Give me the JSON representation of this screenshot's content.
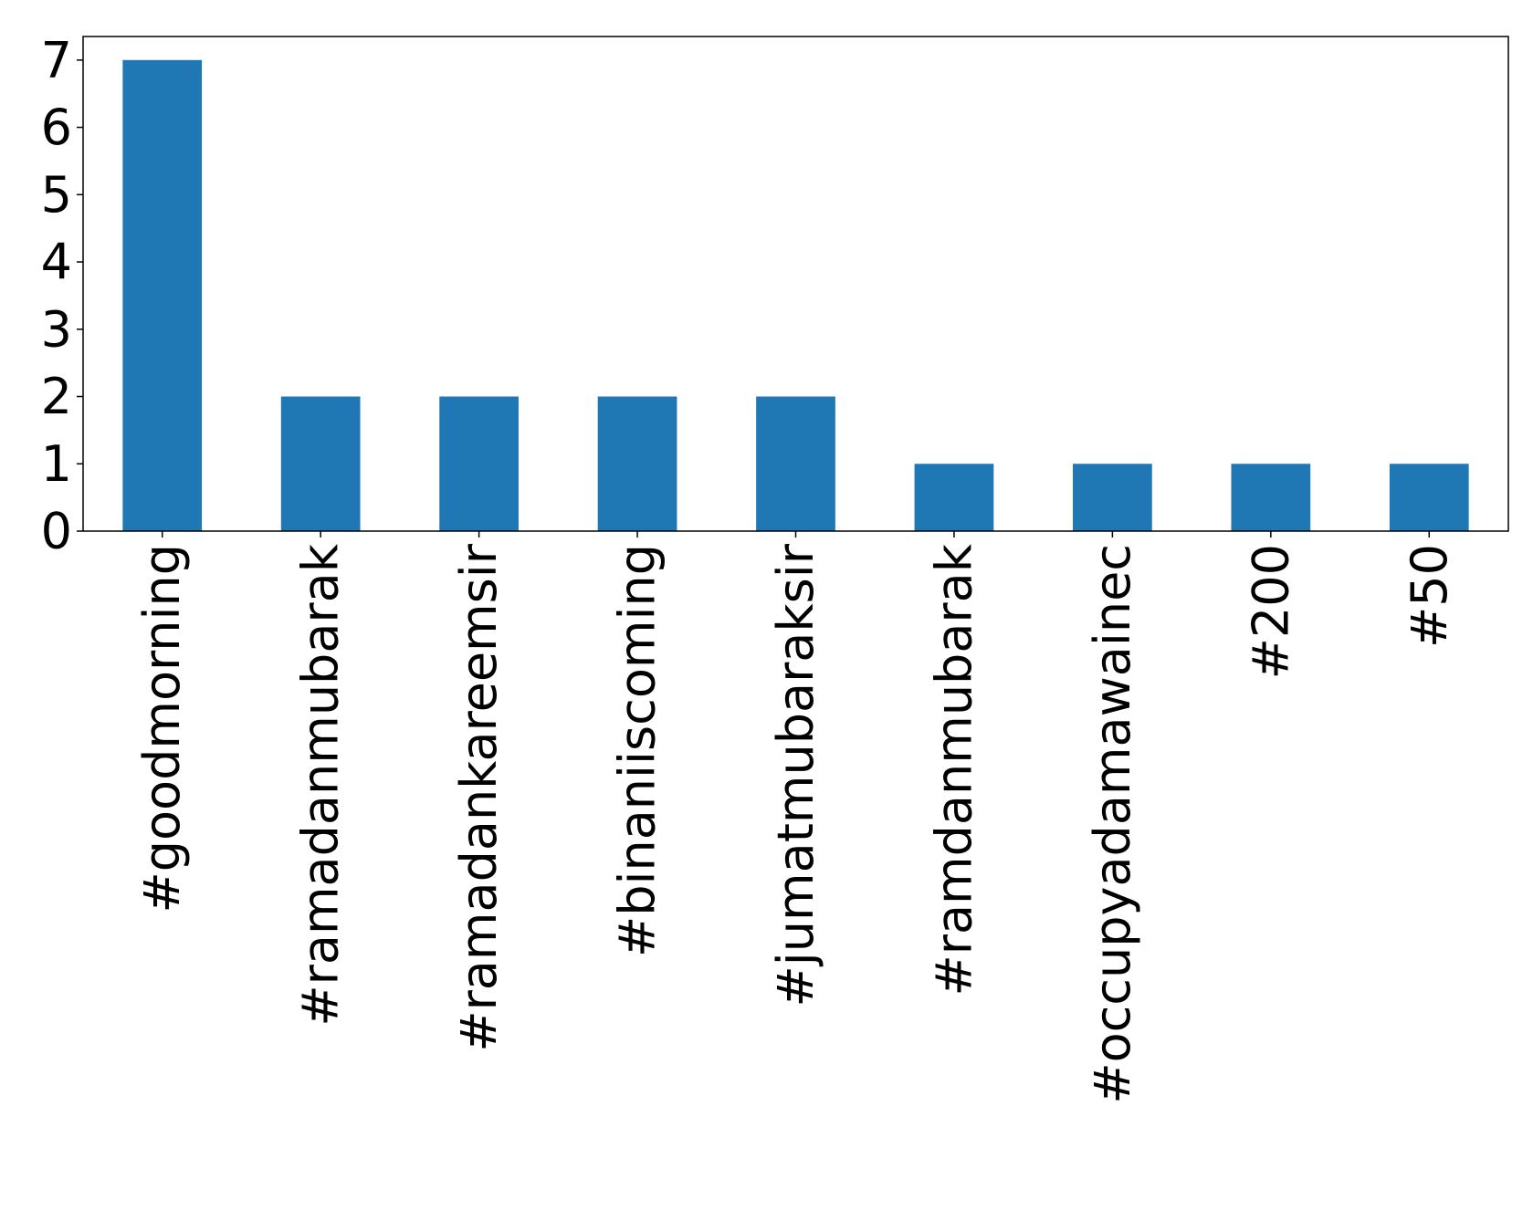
{
  "chart_data": {
    "type": "bar",
    "categories": [
      "#goodmorning",
      "#ramadanmubarak",
      "#ramadankareemsir",
      "#binaniiscoming",
      "#jumatmubaraksir",
      "#ramdanmubarak",
      "#occupyadamawainec",
      "#200",
      "#50"
    ],
    "values": [
      7,
      2,
      2,
      2,
      2,
      1,
      1,
      1,
      1
    ],
    "title": "",
    "xlabel": "",
    "ylabel": "",
    "ylim": [
      0,
      7.35
    ],
    "yticks": [
      0,
      1,
      2,
      3,
      4,
      5,
      6,
      7
    ],
    "bar_color": "#1f77b4",
    "grid": false,
    "legend": "none"
  }
}
